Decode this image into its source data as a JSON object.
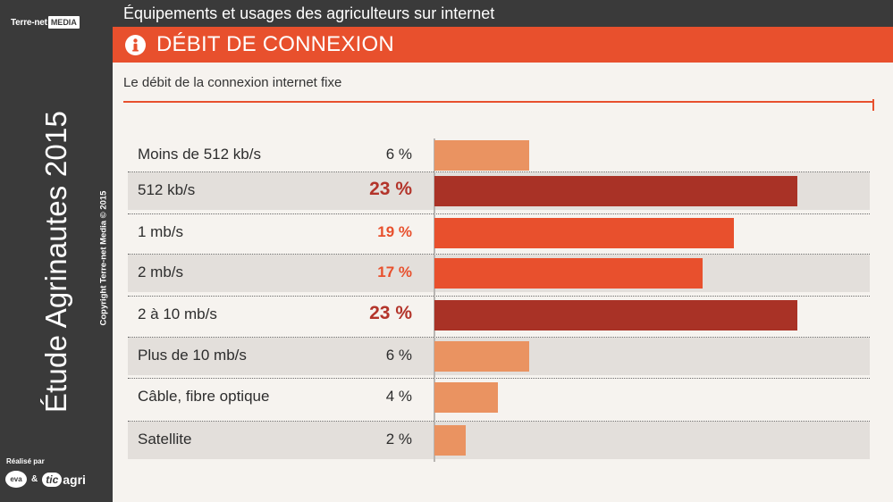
{
  "branding": {
    "logo_part1": "Terre-net",
    "logo_part2": "MEDIA",
    "vertical_title": "Étude Agrinautes 2015",
    "copyright": "Copyright Terre-net Media © 2015",
    "realise_par": "Réalisé par",
    "partner1": "eva",
    "ampersand": "&",
    "partner2_tic": "tic",
    "partner2_agri": "agri"
  },
  "header": {
    "title": "Équipements et usages des agriculteurs sur internet",
    "section": "DÉBIT DE CONNEXION",
    "icon": "info-icon"
  },
  "colors": {
    "accent": "#e8502d",
    "dark": "#3a3a3a",
    "bar_low": "#ea9361",
    "bar_mid": "#e8502d",
    "bar_high": "#a93226",
    "value_mid": "#e8502d",
    "value_high": "#b3342a"
  },
  "chart_data": {
    "type": "bar",
    "orientation": "horizontal",
    "title": "Le débit de la connexion internet fixe",
    "categories": [
      "Moins de 512 kb/s",
      "512 kb/s",
      "1 mb/s",
      "2 mb/s",
      "2 à 10 mb/s",
      "Plus de 10 mb/s",
      "Câble, fibre optique",
      "Satellite"
    ],
    "values": [
      6,
      23,
      19,
      17,
      23,
      6,
      4,
      2
    ],
    "value_labels": [
      "6 %",
      "23 %",
      "19 %",
      "17 %",
      "23 %",
      "6 %",
      "4 %",
      "2 %"
    ],
    "unit": "%",
    "xlim": [
      0,
      25
    ],
    "grid": false,
    "legend": "none"
  }
}
